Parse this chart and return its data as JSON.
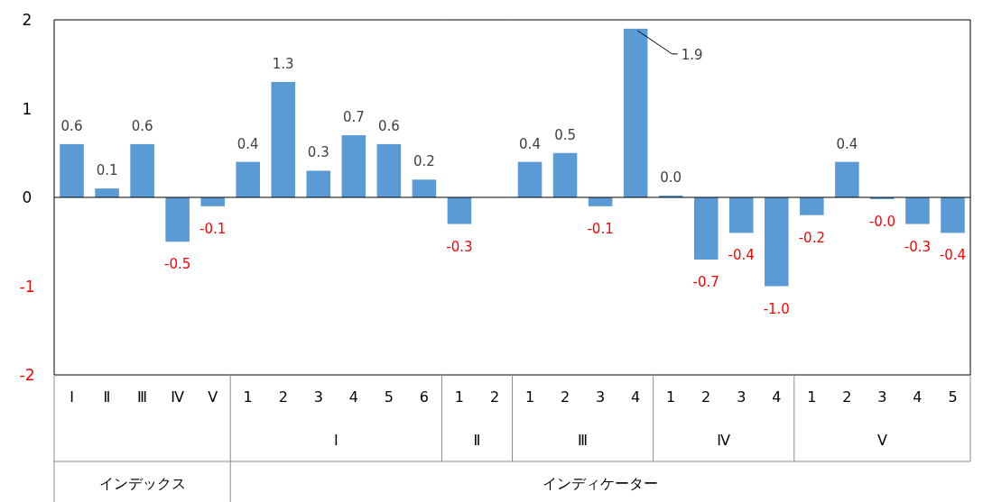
{
  "chart_data": [
    {
      "type": "bar",
      "categories": [
        "Ⅰ",
        "Ⅱ",
        "Ⅲ",
        "Ⅳ",
        "Ⅴ"
      ],
      "annotations": [
        "インデックス"
      ],
      "values": [
        0.6,
        0.1,
        0.6,
        -0.5,
        -0.1
      ],
      "value_labels": [
        "0.6",
        "0.1",
        "0.6",
        "-0.5",
        "-0.1"
      ],
      "color": "#5b9bd5",
      "ylim": [
        -2,
        2
      ],
      "yticks": [
        -2,
        -1,
        0,
        1,
        2
      ]
    },
    {
      "type": "bar",
      "categories": [
        "1",
        "2",
        "3",
        "4",
        "5",
        "6"
      ],
      "xlabel": "Ⅰ",
      "annotations": [
        "インディケーター"
      ],
      "values": [
        0.4,
        1.3,
        0.3,
        0.7,
        0.6,
        0.2
      ],
      "value_labels": [
        "0.4",
        "1.3",
        "0.3",
        "0.7",
        "0.6",
        "0.2"
      ],
      "color": "#5b9bd5",
      "ylim": [
        -2,
        2
      ],
      "tick_labels": "x"
    },
    {
      "type": "bar",
      "categories": [
        "1",
        "2"
      ],
      "xlabel": "Ⅱ",
      "values": [
        -0.3,
        null
      ],
      "value_labels": [
        "-0.3",
        null
      ],
      "color": "#5b9bd5",
      "ylim": [
        -2,
        2
      ],
      "tick_labels": "x"
    },
    {
      "type": "bar",
      "categories": [
        "1",
        "2",
        "3",
        "4"
      ],
      "xlabel": "Ⅲ",
      "values": [
        0.4,
        0.5,
        -0.1,
        1.9
      ],
      "value_labels": [
        "0.4",
        "0.5",
        "-0.1",
        "1.9"
      ],
      "color": "#5b9bd5",
      "ylim": [
        -2,
        2
      ],
      "tick_labels": "x"
    },
    {
      "type": "bar",
      "categories": [
        "1",
        "2",
        "3",
        "4"
      ],
      "xlabel": "Ⅳ",
      "values": [
        0.02,
        -0.7,
        -0.4,
        -1.0
      ],
      "value_labels": [
        "0.0",
        "-0.7",
        "-0.4",
        "-1.0"
      ],
      "color": "#5b9bd5",
      "ylim": [
        -2,
        2
      ],
      "tick_labels": "x"
    },
    {
      "type": "bar",
      "categories": [
        "1",
        "2",
        "3",
        "4",
        "5"
      ],
      "xlabel": "Ⅴ",
      "values": [
        -0.2,
        0.4,
        -0.02,
        -0.3,
        -0.4
      ],
      "value_labels": [
        "-0.2",
        "0.4",
        "-0.0",
        "-0.3",
        "-0.4"
      ],
      "color": "#5b9bd5",
      "ylim": [
        -2,
        2
      ],
      "tick_labels": "x"
    }
  ]
}
